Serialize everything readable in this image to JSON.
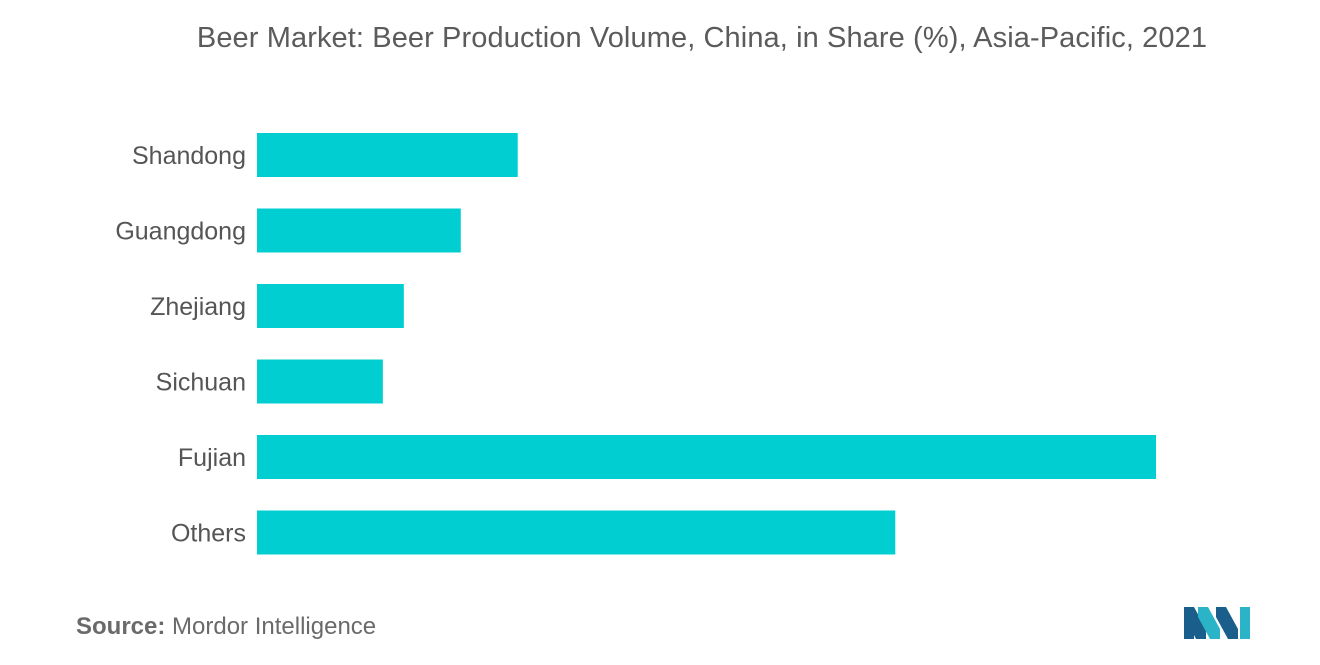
{
  "chart_data": {
    "type": "bar",
    "orientation": "horizontal",
    "title": "Beer Market: Beer Production Volume, China, in Share (%), Asia-Pacific, 2021",
    "categories": [
      "Shandong",
      "Guangdong",
      "Zhejiang",
      "Sichuan",
      "Fujian",
      "Others"
    ],
    "values": [
      8.7,
      6.8,
      4.9,
      4.2,
      30.0,
      21.3
    ],
    "xlim": [
      0,
      30
    ],
    "bar_color": "#00ced1",
    "grid": false,
    "legend": "none"
  },
  "source": {
    "label": "Source:",
    "text": "Mordor Intelligence"
  },
  "logo": {
    "icon": "mordor-intelligence-logo-icon",
    "colors": [
      "#1a5f8c",
      "#2bb3c8"
    ]
  }
}
